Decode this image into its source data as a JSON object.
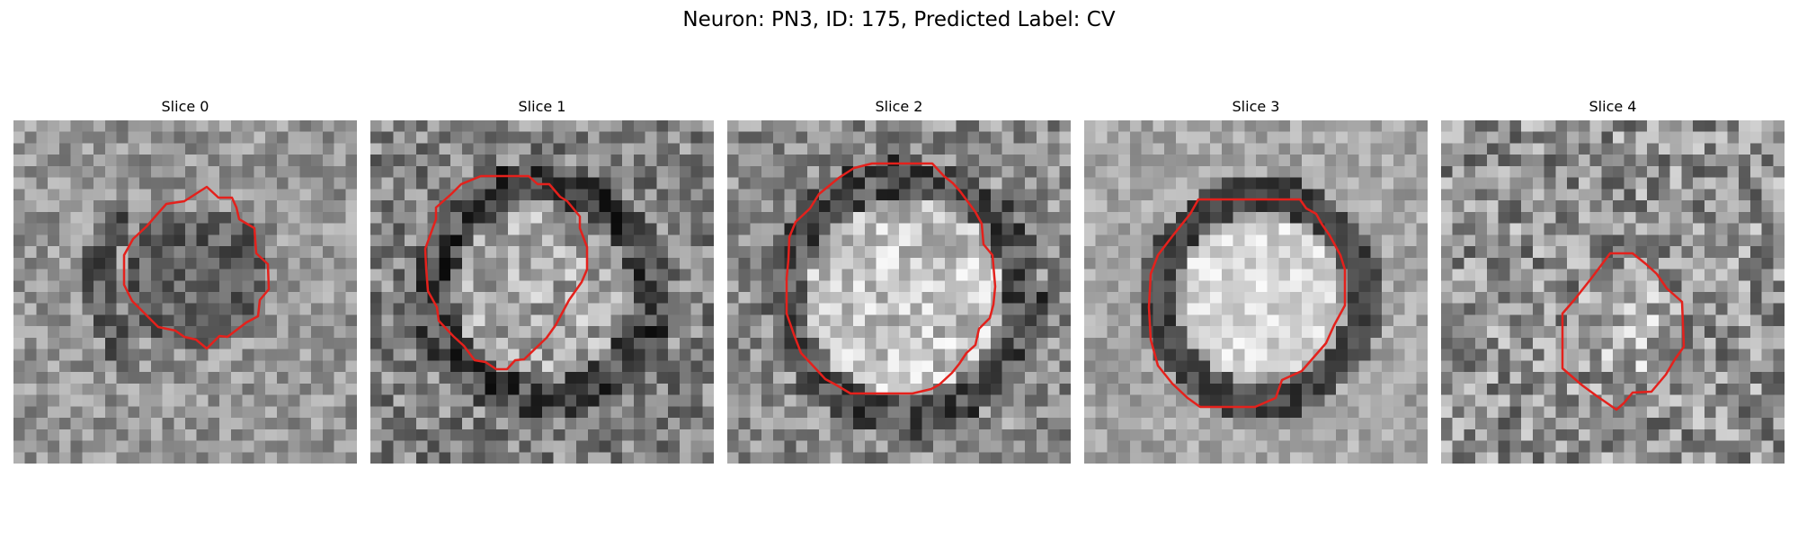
{
  "figure": {
    "title": "Neuron: PN3, ID: 175, Predicted Label: CV"
  },
  "colors": {
    "contour": "#e4211c",
    "colormap": "grayscale"
  },
  "panels": [
    {
      "title": "Slice 0",
      "contour_shape": "small-dark-blob"
    },
    {
      "title": "Slice 1",
      "contour_shape": "large-octagon"
    },
    {
      "title": "Slice 2",
      "contour_shape": "large-octagon"
    },
    {
      "title": "Slice 3",
      "contour_shape": "bright-octagon"
    },
    {
      "title": "Slice 4",
      "contour_shape": "small-octagon"
    }
  ]
}
